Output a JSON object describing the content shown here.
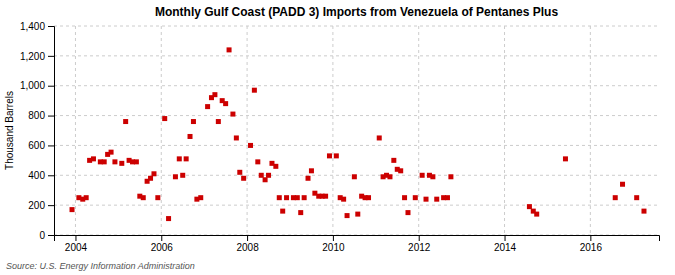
{
  "chart_data": {
    "type": "scatter",
    "title": "Monthly Gulf Coast (PADD 3) Imports from Venezuela of Pentanes Plus",
    "ylabel": "Thousand Barrels",
    "annotations": [
      "Source: U.S. Energy Information Administration"
    ],
    "color": "#cc0000",
    "marker": "square",
    "grid": true,
    "xlim": [
      2003.5,
      2017.6
    ],
    "ylim": [
      0,
      1400
    ],
    "xticks": [
      2004,
      2006,
      2008,
      2010,
      2012,
      2014,
      2016
    ],
    "yticks": [
      0,
      200,
      400,
      600,
      800,
      {
        "value": 1000,
        "label": "1,000"
      },
      {
        "value": 1200,
        "label": "1,200"
      },
      {
        "value": 1400,
        "label": "1,400"
      }
    ],
    "x": [
      2003.92,
      2004.08,
      2004.17,
      2004.25,
      2004.33,
      2004.42,
      2004.58,
      2004.67,
      2004.75,
      2004.83,
      2004.92,
      2005.08,
      2005.17,
      2005.25,
      2005.33,
      2005.42,
      2005.5,
      2005.58,
      2005.67,
      2005.75,
      2005.83,
      2005.92,
      2006.08,
      2006.17,
      2006.33,
      2006.42,
      2006.5,
      2006.58,
      2006.67,
      2006.75,
      2006.83,
      2006.92,
      2007.08,
      2007.17,
      2007.25,
      2007.33,
      2007.42,
      2007.5,
      2007.58,
      2007.67,
      2007.75,
      2007.83,
      2007.92,
      2008.08,
      2008.17,
      2008.25,
      2008.33,
      2008.42,
      2008.5,
      2008.58,
      2008.67,
      2008.75,
      2008.83,
      2008.92,
      2009.08,
      2009.17,
      2009.25,
      2009.33,
      2009.42,
      2009.5,
      2009.58,
      2009.67,
      2009.75,
      2009.83,
      2009.92,
      2010.08,
      2010.17,
      2010.25,
      2010.33,
      2010.5,
      2010.58,
      2010.67,
      2010.75,
      2010.83,
      2011.08,
      2011.17,
      2011.25,
      2011.33,
      2011.42,
      2011.5,
      2011.58,
      2011.67,
      2011.75,
      2011.92,
      2012.08,
      2012.17,
      2012.25,
      2012.33,
      2012.42,
      2012.58,
      2012.67,
      2012.75,
      2014.58,
      2014.67,
      2014.75,
      2015.42,
      2016.58,
      2016.75,
      2017.08,
      2017.25
    ],
    "values": [
      170,
      250,
      240,
      250,
      500,
      510,
      490,
      490,
      540,
      555,
      490,
      480,
      760,
      500,
      490,
      490,
      260,
      250,
      360,
      380,
      410,
      250,
      780,
      110,
      390,
      510,
      400,
      510,
      660,
      760,
      240,
      250,
      860,
      920,
      940,
      760,
      900,
      880,
      1240,
      810,
      650,
      420,
      380,
      600,
      970,
      490,
      400,
      370,
      400,
      480,
      460,
      250,
      160,
      250,
      250,
      250,
      150,
      250,
      380,
      430,
      280,
      260,
      260,
      260,
      530,
      530,
      250,
      240,
      130,
      390,
      140,
      260,
      250,
      250,
      650,
      390,
      400,
      390,
      500,
      440,
      430,
      250,
      150,
      250,
      400,
      240,
      400,
      390,
      240,
      250,
      250,
      390,
      190,
      160,
      140,
      510,
      250,
      340,
      250,
      160
    ]
  }
}
